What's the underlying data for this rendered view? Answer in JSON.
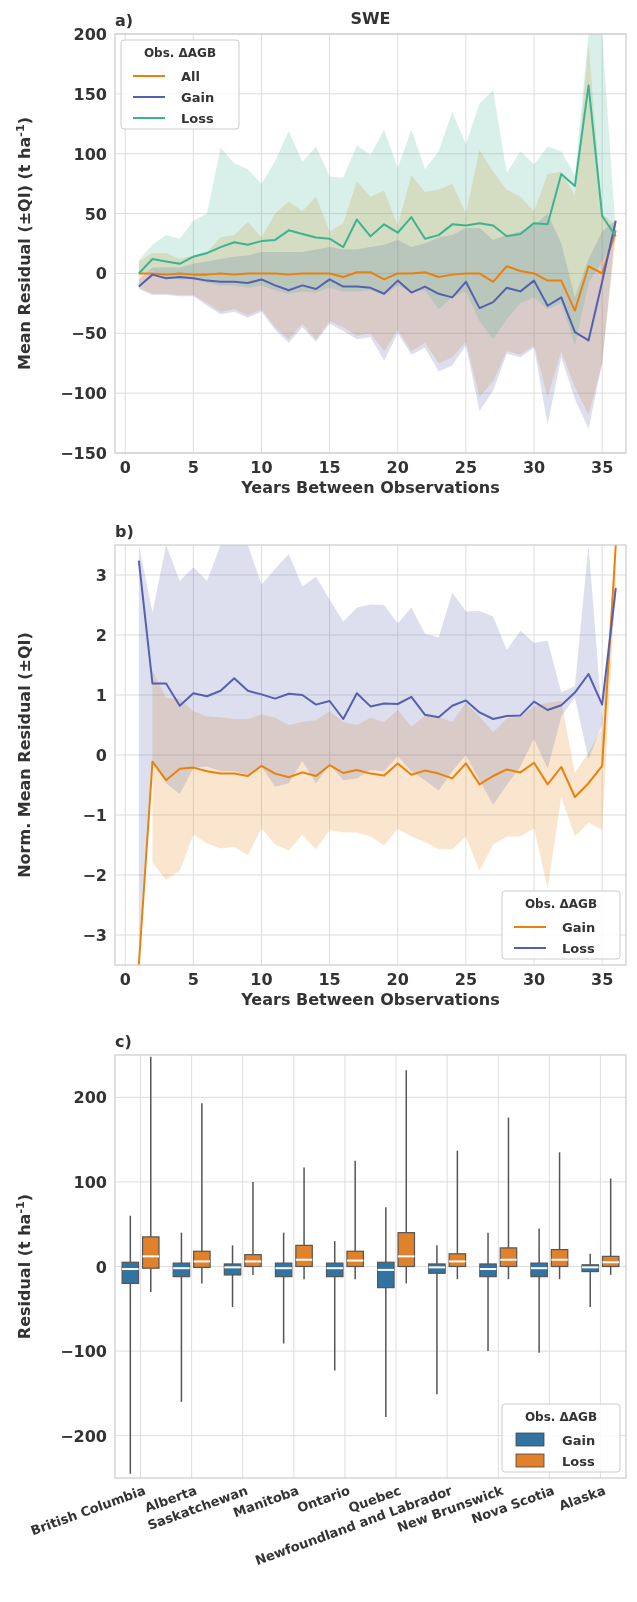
{
  "chart_data": [
    {
      "type": "line",
      "title": "SWE",
      "annotations": [
        "a)"
      ],
      "xlabel": "Years Between Observations",
      "ylabel": "Mean Residual (±QI) (t ha$^{-1}$)",
      "legend_title": "Obs. ΔAGB",
      "legend": "top left",
      "grid": true,
      "x": [
        1,
        2,
        3,
        4,
        5,
        6,
        7,
        8,
        9,
        10,
        11,
        12,
        13,
        14,
        15,
        16,
        17,
        18,
        19,
        20,
        21,
        22,
        23,
        24,
        25,
        26,
        27,
        28,
        29,
        30,
        31,
        32,
        33,
        34,
        35,
        36
      ],
      "xlim": [
        -0.75,
        36.75
      ],
      "xticks": [
        0,
        5,
        10,
        15,
        20,
        25,
        30,
        35
      ],
      "ylim": [
        -150,
        200
      ],
      "yticks": [
        -150,
        -100,
        -50,
        0,
        50,
        100,
        150,
        200
      ],
      "series": [
        {
          "name": "All",
          "color": "#e8820c",
          "values": [
            0,
            0,
            -1,
            0,
            -1,
            -1,
            0,
            -1,
            0,
            0,
            0,
            -1,
            0,
            0,
            0,
            -3,
            1,
            1,
            -5,
            0,
            0,
            1,
            -3,
            -1,
            0,
            0,
            -7,
            6,
            2,
            0,
            -6,
            -6,
            -31,
            6,
            0,
            36
          ],
          "lower": [
            -12,
            -17,
            -17,
            -18,
            -18,
            -25,
            -32,
            -30,
            -35,
            -30,
            -45,
            -55,
            -42,
            -55,
            -40,
            -45,
            -52,
            -50,
            -65,
            -47,
            -65,
            -58,
            -75,
            -70,
            -57,
            -103,
            -90,
            -65,
            -68,
            -60,
            -103,
            -65,
            -95,
            -118,
            -75,
            30
          ],
          "upper": [
            10,
            17,
            17,
            12,
            15,
            18,
            30,
            32,
            43,
            30,
            50,
            60,
            52,
            64,
            35,
            42,
            77,
            64,
            69,
            40,
            82,
            68,
            70,
            75,
            50,
            103,
            85,
            70,
            64,
            52,
            83,
            85,
            65,
            192,
            50,
            40
          ]
        },
        {
          "name": "Gain",
          "color": "#5560b0",
          "values": [
            -11,
            -1,
            -4,
            -3,
            -4,
            -6,
            -7,
            -7,
            -8,
            -5,
            -10,
            -14,
            -10,
            -13,
            -5,
            -11,
            -11,
            -12,
            -17,
            -6,
            -16,
            -11,
            -17,
            -20,
            -7,
            -29,
            -24,
            -12,
            -15,
            -6,
            -27,
            -20,
            -49,
            -56,
            -7,
            44
          ],
          "lower": [
            -13,
            -18,
            -18,
            -19,
            -19,
            -27,
            -34,
            -32,
            -37,
            -32,
            -47,
            -58,
            -45,
            -57,
            -42,
            -48,
            -55,
            -53,
            -73,
            -50,
            -68,
            -62,
            -82,
            -77,
            -60,
            -115,
            -98,
            -67,
            -70,
            -62,
            -126,
            -70,
            -105,
            -130,
            -75,
            40
          ],
          "upper": [
            -5,
            5,
            5,
            5,
            8,
            10,
            12,
            14,
            15,
            18,
            18,
            18,
            18,
            20,
            22,
            20,
            20,
            22,
            24,
            28,
            22,
            25,
            30,
            32,
            38,
            38,
            28,
            32,
            35,
            40,
            50,
            25,
            -20,
            12,
            35,
            45
          ]
        },
        {
          "name": "Loss",
          "color": "#3cb391",
          "values": [
            0,
            12,
            10,
            8,
            14,
            17,
            22,
            26,
            24,
            27,
            28,
            36,
            33,
            30,
            29,
            22,
            45,
            31,
            41,
            34,
            47,
            29,
            32,
            41,
            40,
            42,
            40,
            31,
            33,
            42,
            41,
            83,
            73,
            157,
            48,
            31
          ],
          "lower": [
            0,
            2,
            -3,
            -5,
            -5,
            -8,
            -10,
            -10,
            -12,
            -10,
            -14,
            -17,
            -15,
            -16,
            -12,
            -15,
            -15,
            -14,
            -18,
            -10,
            -16,
            -14,
            -30,
            -20,
            -15,
            -40,
            -55,
            -38,
            -25,
            -20,
            -30,
            -25,
            -60,
            -8,
            10,
            28
          ],
          "upper": [
            11,
            24,
            32,
            29,
            44,
            50,
            105,
            92,
            87,
            75,
            94,
            119,
            93,
            106,
            81,
            80,
            107,
            99,
            120,
            88,
            120,
            87,
            102,
            135,
            108,
            142,
            153,
            84,
            102,
            91,
            106,
            102,
            82,
            200,
            200,
            34
          ]
        }
      ]
    },
    {
      "type": "line",
      "annotations": [
        "b)"
      ],
      "xlabel": "Years Between Observations",
      "ylabel": "Norm. Mean Residual (±QI)",
      "legend_title": "Obs. ΔAGB",
      "legend": "bottom right",
      "grid": true,
      "x": [
        1,
        2,
        3,
        4,
        5,
        6,
        7,
        8,
        9,
        10,
        11,
        12,
        13,
        14,
        15,
        16,
        17,
        18,
        19,
        20,
        21,
        22,
        23,
        24,
        25,
        26,
        27,
        28,
        29,
        30,
        31,
        32,
        33,
        34,
        35,
        36
      ],
      "xlim": [
        -0.75,
        36.75
      ],
      "xticks": [
        0,
        5,
        10,
        15,
        20,
        25,
        30,
        35
      ],
      "ylim": [
        -3.5,
        3.5
      ],
      "yticks": [
        -3,
        -2,
        -1,
        0,
        1,
        2,
        3
      ],
      "series": [
        {
          "name": "Gain",
          "color": "#e8820c",
          "values": [
            -3.5,
            -0.11,
            -0.42,
            -0.23,
            -0.21,
            -0.27,
            -0.31,
            -0.31,
            -0.35,
            -0.18,
            -0.31,
            -0.37,
            -0.29,
            -0.35,
            -0.17,
            -0.3,
            -0.25,
            -0.31,
            -0.34,
            -0.14,
            -0.33,
            -0.26,
            -0.31,
            -0.39,
            -0.14,
            -0.49,
            -0.35,
            -0.24,
            -0.29,
            -0.13,
            -0.49,
            -0.2,
            -0.7,
            -0.47,
            -0.18,
            3.5
          ],
          "lower": [
            null,
            -1.79,
            -2.08,
            -1.93,
            -1.33,
            -1.47,
            -1.56,
            -1.53,
            -1.67,
            -1.22,
            -1.49,
            -1.59,
            -1.33,
            -1.57,
            -1.25,
            -1.29,
            -1.29,
            -1.36,
            -1.51,
            -1.23,
            -1.36,
            -1.45,
            -1.57,
            -1.57,
            -1.36,
            -1.93,
            -1.49,
            -1.36,
            -1.36,
            -1.22,
            -2.22,
            -0.7,
            -1.36,
            -1.13,
            -1.25,
            2.9
          ],
          "upper": [
            null,
            1.41,
            0.95,
            0.94,
            0.73,
            0.64,
            0.63,
            0.6,
            0.6,
            0.68,
            0.62,
            0.5,
            0.55,
            0.58,
            0.73,
            0.55,
            0.5,
            0.62,
            0.55,
            0.75,
            0.47,
            0.66,
            0.64,
            0.55,
            0.87,
            0.64,
            0.38,
            0.61,
            0.64,
            0.81,
            0.87,
            0.9,
            -0.3,
            0.04,
            0.44,
            3.5
          ]
        },
        {
          "name": "Loss",
          "color": "#5560b0",
          "values": [
            3.24,
            1.19,
            1.19,
            0.82,
            1.03,
            0.98,
            1.07,
            1.28,
            1.07,
            1.01,
            0.94,
            1.02,
            1.0,
            0.84,
            0.9,
            0.6,
            1.03,
            0.81,
            0.86,
            0.85,
            0.97,
            0.67,
            0.63,
            0.82,
            0.91,
            0.71,
            0.6,
            0.65,
            0.66,
            0.89,
            0.75,
            0.83,
            1.04,
            1.35,
            0.84,
            2.78
          ],
          "lower": [
            -3.5,
            -0.07,
            -0.47,
            -0.65,
            -0.22,
            -0.19,
            -0.27,
            -0.27,
            -0.33,
            -0.19,
            -0.53,
            -0.47,
            -0.1,
            -0.47,
            -0.16,
            -0.42,
            -0.39,
            -0.25,
            -0.27,
            -0.02,
            -0.27,
            -0.42,
            -0.59,
            -0.27,
            0,
            -0.42,
            -0.83,
            -0.5,
            -0.19,
            0.27,
            -0.23,
            0.64,
            0.96,
            -0.07,
            0.5,
            2.6
          ],
          "upper": [
            3.5,
            2.38,
            3.5,
            2.9,
            3.13,
            2.9,
            3.5,
            3.5,
            3.5,
            2.84,
            3.1,
            3.35,
            2.81,
            2.97,
            2.59,
            2.22,
            2.46,
            2.51,
            2.5,
            2.19,
            2.46,
            2.02,
            1.96,
            2.71,
            2.39,
            2.4,
            2.31,
            1.75,
            2.07,
            1.87,
            1.91,
            1.04,
            1.15,
            3.5,
            0.6,
            2.93
          ]
        }
      ]
    },
    {
      "type": "box",
      "annotations": [
        "c)"
      ],
      "ylabel": "Residual (t ha$^{-1}$)",
      "legend_title": "Obs. ΔAGB",
      "legend": "bottom right",
      "grid": true,
      "categories": [
        "British Columbia",
        "Alberta",
        "Saskatchewan",
        "Manitoba",
        "Ontario",
        "Quebec",
        "Newfoundland and Labrador",
        "New Brunswick",
        "Nova Scotia",
        "Alaska"
      ],
      "ylim": [
        -250,
        250
      ],
      "yticks": [
        -200,
        -100,
        0,
        100,
        200
      ],
      "series": [
        {
          "name": "Gain",
          "color": "#3274a1",
          "boxes": [
            {
              "low": -245,
              "q1": -20,
              "median": -3,
              "q3": 5,
              "high": 60
            },
            {
              "low": -160,
              "q1": -12,
              "median": -2,
              "q3": 4,
              "high": 40
            },
            {
              "low": -48,
              "q1": -10,
              "median": -1,
              "q3": 3,
              "high": 25
            },
            {
              "low": -91,
              "q1": -12,
              "median": -2,
              "q3": 4,
              "high": 40
            },
            {
              "low": -123,
              "q1": -12,
              "median": -2,
              "q3": 4,
              "high": 30
            },
            {
              "low": -178,
              "q1": -25,
              "median": -4,
              "q3": 5,
              "high": 70
            },
            {
              "low": -151,
              "q1": -8,
              "median": -1,
              "q3": 3,
              "high": 25
            },
            {
              "low": -100,
              "q1": -12,
              "median": -3,
              "q3": 3,
              "high": 40
            },
            {
              "low": -102,
              "q1": -12,
              "median": -2,
              "q3": 4,
              "high": 45
            },
            {
              "low": -48,
              "q1": -6,
              "median": -1,
              "q3": 2,
              "high": 15
            }
          ]
        },
        {
          "name": "Loss",
          "color": "#e1812c",
          "boxes": [
            {
              "low": -30,
              "q1": -2,
              "median": 12,
              "q3": 35,
              "high": 248
            },
            {
              "low": -20,
              "q1": -1,
              "median": 6,
              "q3": 18,
              "high": 193
            },
            {
              "low": -10,
              "q1": 0,
              "median": 6,
              "q3": 14,
              "high": 100
            },
            {
              "low": -15,
              "q1": 0,
              "median": 8,
              "q3": 25,
              "high": 117
            },
            {
              "low": -15,
              "q1": 0,
              "median": 7,
              "q3": 18,
              "high": 125
            },
            {
              "low": -20,
              "q1": 0,
              "median": 12,
              "q3": 40,
              "high": 232
            },
            {
              "low": -15,
              "q1": 0,
              "median": 6,
              "q3": 15,
              "high": 137
            },
            {
              "low": -15,
              "q1": 0,
              "median": 8,
              "q3": 22,
              "high": 176
            },
            {
              "low": -15,
              "q1": 0,
              "median": 8,
              "q3": 20,
              "high": 135
            },
            {
              "low": -10,
              "q1": 0,
              "median": 5,
              "q3": 12,
              "high": 104
            }
          ]
        }
      ]
    }
  ]
}
